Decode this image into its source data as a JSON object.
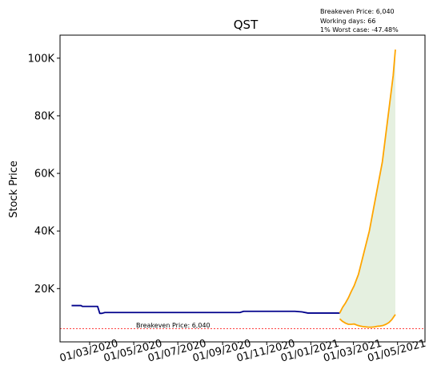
{
  "chart_data": {
    "type": "line",
    "title": "QST",
    "ylabel": "Stock Price",
    "xlabel": "",
    "annotations": {
      "info_lines": [
        "Breakeven Price: 6,040",
        "Working days: 66",
        "1% Worst case: -47.48%"
      ],
      "breakeven_label": "Breakeven Price: 6,040"
    },
    "breakeven_price": 6040,
    "x_range": [
      "2020-01-20",
      "2021-06-08"
    ],
    "ylim": [
      1500,
      108000
    ],
    "x_ticks": [
      {
        "date": "2020-03-01",
        "label": "01/03/2020"
      },
      {
        "date": "2020-05-01",
        "label": "01/05/2020"
      },
      {
        "date": "2020-07-01",
        "label": "01/07/2020"
      },
      {
        "date": "2020-09-01",
        "label": "01/09/2020"
      },
      {
        "date": "2020-11-01",
        "label": "01/11/2020"
      },
      {
        "date": "2021-01-01",
        "label": "01/01/2021"
      },
      {
        "date": "2021-03-01",
        "label": "01/03/2021"
      },
      {
        "date": "2021-05-01",
        "label": "01/05/2021"
      }
    ],
    "y_ticks": [
      {
        "value": 20000,
        "label": "20K"
      },
      {
        "value": 40000,
        "label": "40K"
      },
      {
        "value": 60000,
        "label": "60K"
      },
      {
        "value": 80000,
        "label": "80K"
      },
      {
        "value": 100000,
        "label": "100K"
      }
    ],
    "colors": {
      "history": "#00008b",
      "upper": "#ffa500",
      "lower": "#ffa500",
      "band_fill": "#e5f0e0",
      "breakeven": "#ff0000"
    },
    "series": [
      {
        "role": "history",
        "points": [
          [
            "2020-02-05",
            14100
          ],
          [
            "2020-02-18",
            14100
          ],
          [
            "2020-02-20",
            13800
          ],
          [
            "2020-03-12",
            13800
          ],
          [
            "2020-03-15",
            11400
          ],
          [
            "2020-03-18",
            11400
          ],
          [
            "2020-03-22",
            11700
          ],
          [
            "2020-09-25",
            11700
          ],
          [
            "2020-09-30",
            12100
          ],
          [
            "2020-12-10",
            12100
          ],
          [
            "2020-12-20",
            11900
          ],
          [
            "2020-12-28",
            11500
          ],
          [
            "2021-02-10",
            11500
          ]
        ]
      },
      {
        "role": "upper",
        "points": [
          [
            "2021-02-10",
            11500
          ],
          [
            "2021-02-14",
            13500
          ],
          [
            "2021-02-18",
            15000
          ],
          [
            "2021-02-22",
            16800
          ],
          [
            "2021-02-26",
            19000
          ],
          [
            "2021-03-02",
            21000
          ],
          [
            "2021-03-05",
            23000
          ],
          [
            "2021-03-08",
            25000
          ],
          [
            "2021-03-11",
            28000
          ],
          [
            "2021-03-14",
            31000
          ],
          [
            "2021-03-17",
            34000
          ],
          [
            "2021-03-20",
            37000
          ],
          [
            "2021-03-23",
            40000
          ],
          [
            "2021-03-26",
            44000
          ],
          [
            "2021-03-29",
            48000
          ],
          [
            "2021-04-01",
            52000
          ],
          [
            "2021-04-04",
            56000
          ],
          [
            "2021-04-07",
            60000
          ],
          [
            "2021-04-10",
            64000
          ],
          [
            "2021-04-13",
            70000
          ],
          [
            "2021-04-16",
            76000
          ],
          [
            "2021-04-19",
            82000
          ],
          [
            "2021-04-22",
            88000
          ],
          [
            "2021-04-25",
            94000
          ],
          [
            "2021-04-28",
            103000
          ]
        ]
      },
      {
        "role": "lower",
        "points": [
          [
            "2021-02-10",
            9500
          ],
          [
            "2021-02-14",
            8600
          ],
          [
            "2021-02-18",
            8000
          ],
          [
            "2021-02-22",
            7600
          ],
          [
            "2021-02-26",
            7600
          ],
          [
            "2021-03-02",
            7700
          ],
          [
            "2021-03-06",
            7300
          ],
          [
            "2021-03-10",
            7000
          ],
          [
            "2021-03-14",
            6800
          ],
          [
            "2021-03-18",
            6700
          ],
          [
            "2021-03-22",
            6600
          ],
          [
            "2021-03-26",
            6600
          ],
          [
            "2021-03-30",
            6700
          ],
          [
            "2021-04-03",
            6900
          ],
          [
            "2021-04-07",
            7000
          ],
          [
            "2021-04-11",
            7200
          ],
          [
            "2021-04-15",
            7600
          ],
          [
            "2021-04-19",
            8200
          ],
          [
            "2021-04-23",
            9200
          ],
          [
            "2021-04-28",
            11000
          ]
        ]
      }
    ]
  }
}
